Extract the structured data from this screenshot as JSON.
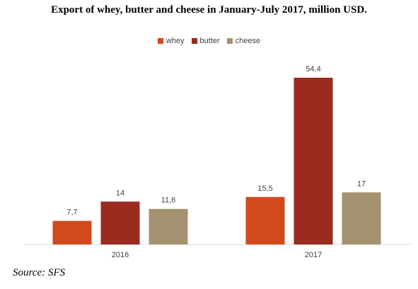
{
  "chart_data": {
    "type": "bar",
    "title": "Export of whey, butter and cheese in January-July 2017, million USD.",
    "categories": [
      "2016",
      "2017"
    ],
    "series": [
      {
        "name": "whey",
        "color": "#d2491c",
        "values": [
          7.7,
          15.5
        ],
        "labels": [
          "7,7",
          "15,5"
        ]
      },
      {
        "name": "butter",
        "color": "#9b2a1f",
        "values": [
          14,
          54.4
        ],
        "labels": [
          "14",
          "54,4"
        ]
      },
      {
        "name": "cheese",
        "color": "#a49270",
        "values": [
          11.6,
          17
        ],
        "labels": [
          "11,6",
          "17"
        ]
      }
    ],
    "ylim": [
      0,
      60
    ],
    "grid": false,
    "legend_position": "top"
  },
  "source": "Source: SFS"
}
